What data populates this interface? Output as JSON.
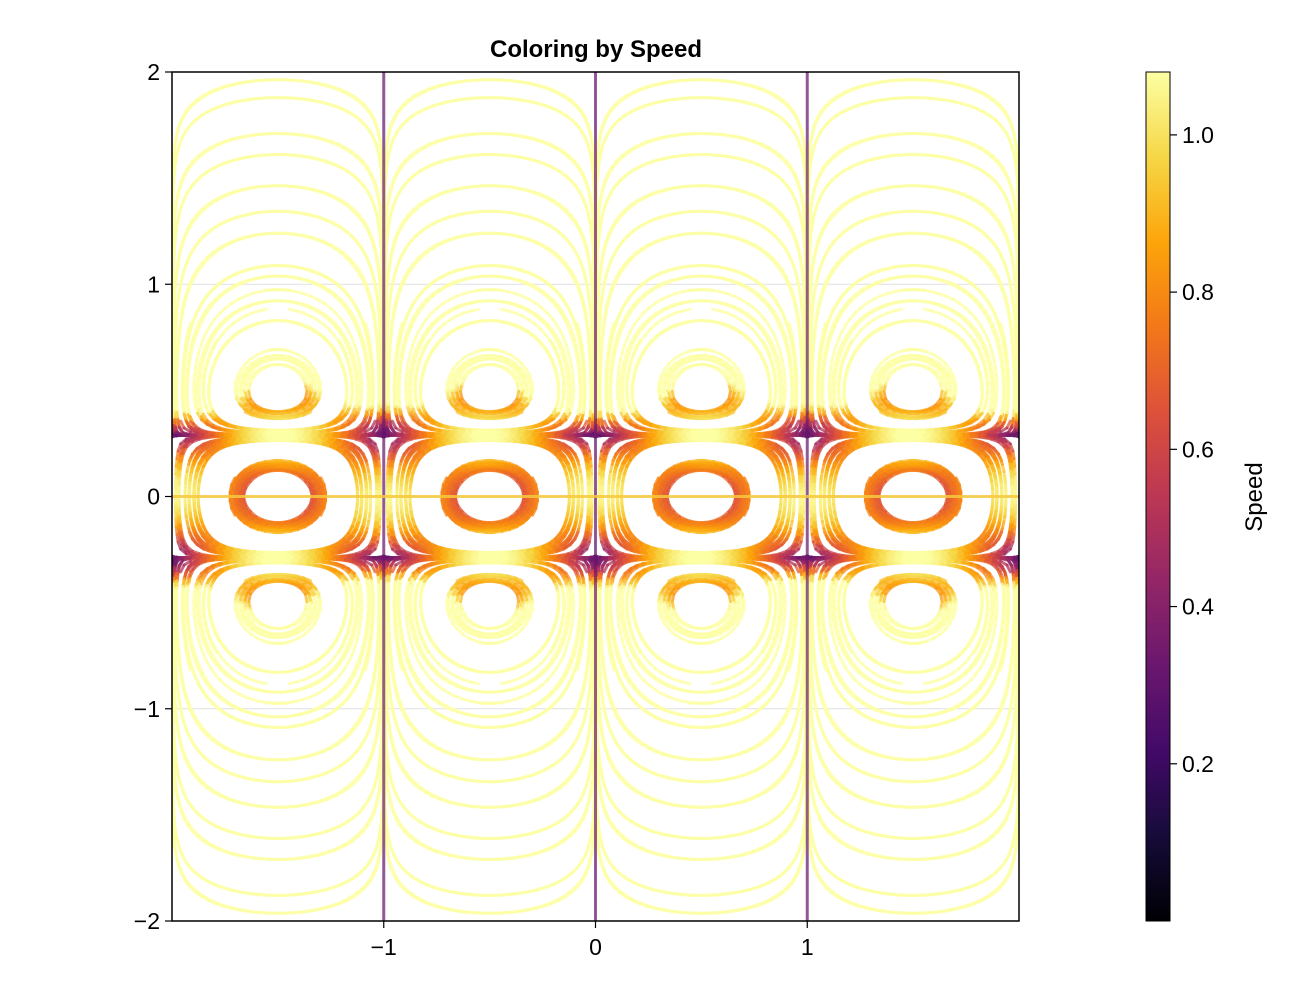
{
  "chart_data": {
    "type": "streamplot",
    "title": "Coloring by Speed",
    "xlabel": "",
    "ylabel": "",
    "xlim": [
      -2,
      2
    ],
    "ylim": [
      -2,
      2
    ],
    "x_ticks": [
      {
        "value": -1,
        "label": "−1"
      },
      {
        "value": 0,
        "label": "0"
      },
      {
        "value": 1,
        "label": "1"
      }
    ],
    "y_ticks": [
      {
        "value": 2,
        "label": "2"
      },
      {
        "value": 1,
        "label": "1"
      },
      {
        "value": 0,
        "label": "0"
      },
      {
        "value": -1,
        "label": "−1"
      },
      {
        "value": -2,
        "label": "−2"
      }
    ],
    "grid": true,
    "field": {
      "type": "streamlines",
      "vertical_separatrices_x": [
        -1,
        0,
        1
      ],
      "horizontal_separatrix_y": 0,
      "nodes_y": [
        0.5,
        -0.5
      ],
      "color_by": "speed"
    },
    "colorbar": {
      "label": "Speed",
      "colormap": "inferno",
      "range": [
        0.0,
        1.08
      ],
      "ticks": [
        {
          "value": 0.2,
          "label": "0.2"
        },
        {
          "value": 0.4,
          "label": "0.4"
        },
        {
          "value": 0.6,
          "label": "0.6"
        },
        {
          "value": 0.8,
          "label": "0.8"
        },
        {
          "value": 1.0,
          "label": "1.0"
        }
      ]
    }
  }
}
